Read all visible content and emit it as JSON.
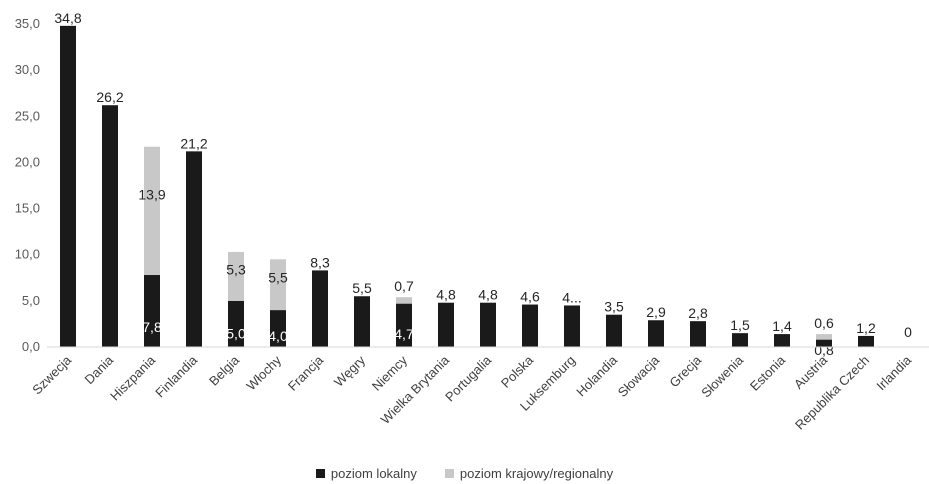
{
  "chart_data": {
    "type": "bar",
    "stacked": true,
    "categories": [
      "Szwecja",
      "Dania",
      "Hiszpania",
      "Finlandia",
      "Belgia",
      "Włochy",
      "Francja",
      "Węgry",
      "Niemcy",
      "Wielka Brytania",
      "Portugalia",
      "Polska",
      "Luksemburg",
      "Holandia",
      "Słowacja",
      "Grecja",
      "Słowenia",
      "Estonia",
      "Austria",
      "Republika Czech",
      "Irlandia"
    ],
    "series": [
      {
        "name": "poziom lokalny",
        "color": "#1a1a1a",
        "values": [
          34.8,
          26.2,
          7.8,
          21.2,
          5.0,
          4.0,
          8.3,
          5.5,
          4.7,
          4.8,
          4.8,
          4.6,
          4.5,
          3.5,
          2.9,
          2.8,
          1.5,
          1.4,
          0.8,
          1.2,
          0
        ],
        "labels": [
          "34,8",
          "26,2",
          "7,8",
          "21,2",
          "5,0",
          "4,0",
          "8,3",
          "5,5",
          "4,7",
          "4,8",
          "4,8",
          "4,6",
          "4...",
          "3,5",
          "2,9",
          "2,8",
          "1,5",
          "1,4",
          "0,8",
          "1,2",
          "0"
        ]
      },
      {
        "name": "poziom krajowy/regionalny",
        "color": "#c8c8c8",
        "values": [
          0,
          0,
          13.9,
          0,
          5.3,
          5.5,
          0,
          0,
          0.7,
          0,
          0,
          0,
          0,
          0,
          0,
          0,
          0,
          0,
          0.6,
          0,
          0
        ],
        "labels": [
          "",
          "",
          "13,9",
          "",
          "5,3",
          "5,5",
          "",
          "",
          "0,7",
          "",
          "",
          "",
          "",
          "",
          "",
          "",
          "",
          "",
          "0,6",
          "",
          ""
        ]
      }
    ],
    "y_ticks": [
      "0,0",
      "5,0",
      "10,0",
      "15,0",
      "20,0",
      "25,0",
      "30,0",
      "35,0"
    ],
    "ylim": [
      0,
      35
    ],
    "legend_position": "bottom",
    "grid": false
  }
}
